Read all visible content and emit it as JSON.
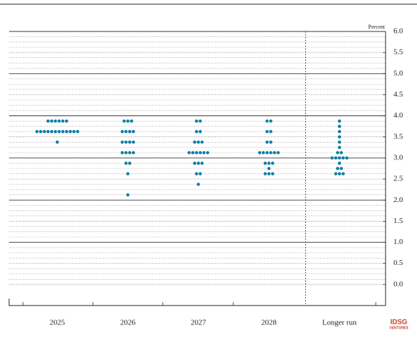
{
  "chart_data": {
    "type": "dot",
    "y_axis_label": "Percent",
    "categories": [
      "2025",
      "2026",
      "2027",
      "2028",
      "Longer run"
    ],
    "values": [
      [
        3.875,
        3.875,
        3.875,
        3.875,
        3.875,
        3.875,
        3.625,
        3.625,
        3.625,
        3.625,
        3.625,
        3.625,
        3.625,
        3.625,
        3.625,
        3.625,
        3.625,
        3.625,
        3.375
      ],
      [
        3.875,
        3.875,
        3.875,
        3.625,
        3.625,
        3.625,
        3.625,
        3.375,
        3.375,
        3.375,
        3.375,
        3.125,
        3.125,
        3.125,
        3.125,
        2.875,
        2.875,
        2.625,
        2.125
      ],
      [
        3.875,
        3.875,
        3.625,
        3.625,
        3.375,
        3.375,
        3.375,
        3.125,
        3.125,
        3.125,
        3.125,
        3.125,
        3.125,
        2.875,
        2.875,
        2.875,
        2.625,
        2.625,
        2.375
      ],
      [
        3.875,
        3.875,
        3.625,
        3.625,
        3.375,
        3.375,
        3.125,
        3.125,
        3.125,
        3.125,
        3.125,
        3.125,
        2.875,
        2.875,
        2.875,
        2.75,
        2.625,
        2.625,
        2.625
      ],
      [
        3.875,
        3.75,
        3.625,
        3.5,
        3.375,
        3.25,
        3.125,
        3.125,
        3.0,
        3.0,
        3.0,
        3.0,
        3.0,
        2.875,
        2.75,
        2.75,
        2.625,
        2.625,
        2.625
      ]
    ],
    "color": "#0f7ea6",
    "ylim": [
      -0.5,
      6.0
    ],
    "yticks": [
      {
        "value": 0,
        "label": "0.0"
      },
      0.5,
      {
        "value": 1,
        "label": "1.0"
      },
      1.5,
      {
        "value": 2,
        "label": "2.0"
      },
      2.5,
      {
        "value": 3,
        "label": "3.0"
      },
      3.5,
      {
        "value": 4,
        "label": "4.0"
      },
      4.5,
      {
        "value": 5,
        "label": "5.0"
      },
      5.5,
      {
        "value": 6,
        "label": "6.0"
      }
    ],
    "grid": true,
    "watermark": [
      "IDSG",
      "VENTURES"
    ]
  }
}
